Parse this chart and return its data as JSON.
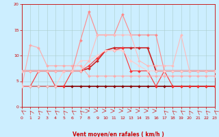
{
  "xlabel": "Vent moyen/en rafales ( km/h )",
  "xlim": [
    0,
    23
  ],
  "ylim": [
    0,
    20
  ],
  "xticks": [
    0,
    1,
    2,
    3,
    4,
    5,
    6,
    7,
    8,
    9,
    10,
    11,
    12,
    13,
    14,
    15,
    16,
    17,
    18,
    19,
    20,
    21,
    22,
    23
  ],
  "yticks": [
    0,
    5,
    10,
    15,
    20
  ],
  "bg_color": "#cceeff",
  "grid_color": "#aacccc",
  "lines": [
    {
      "x": [
        0,
        1,
        2,
        3,
        4,
        5,
        6,
        7,
        8,
        9,
        10,
        11,
        12,
        13,
        14,
        15,
        16,
        17,
        18,
        19,
        20,
        21,
        22,
        23
      ],
      "y": [
        4,
        4,
        4,
        4,
        4,
        4,
        4,
        4,
        4,
        4,
        4,
        4,
        4,
        4,
        4,
        4,
        4,
        4,
        4,
        4,
        4,
        4,
        4,
        4
      ],
      "color": "#880000",
      "lw": 1.2,
      "marker": "D",
      "ms": 2.0
    },
    {
      "x": [
        0,
        1,
        2,
        3,
        4,
        5,
        6,
        7,
        8,
        9,
        10,
        11,
        12,
        13,
        14,
        15,
        16,
        17,
        18,
        19,
        20,
        21,
        22,
        23
      ],
      "y": [
        7,
        7,
        7,
        7,
        7,
        7,
        7,
        7,
        7.5,
        9,
        11,
        11.5,
        11.5,
        11.5,
        11.5,
        11.5,
        7,
        7,
        7,
        7,
        7,
        7,
        7,
        7
      ],
      "color": "#cc2222",
      "lw": 1.2,
      "marker": "D",
      "ms": 2.0
    },
    {
      "x": [
        0,
        1,
        2,
        3,
        4,
        5,
        6,
        7,
        8,
        9,
        10,
        11,
        12,
        13,
        14,
        15,
        16,
        17,
        18,
        19,
        20,
        21,
        22,
        23
      ],
      "y": [
        4,
        4,
        7,
        7,
        4,
        4,
        7,
        7,
        8,
        9.5,
        11,
        11,
        11.5,
        7,
        7,
        7,
        4,
        7,
        4,
        4,
        4,
        4,
        4,
        4
      ],
      "color": "#ff3333",
      "lw": 0.8,
      "marker": "D",
      "ms": 2.0
    },
    {
      "x": [
        0,
        1,
        2,
        3,
        4,
        5,
        6,
        7,
        8,
        9,
        10,
        11,
        12,
        13,
        14,
        15,
        16,
        17,
        18,
        19,
        20,
        21,
        22,
        23
      ],
      "y": [
        4,
        12,
        11.5,
        8,
        8,
        8,
        8,
        8,
        6,
        6,
        6,
        6,
        6,
        6,
        6,
        6,
        6,
        6,
        6,
        6,
        6,
        6,
        6,
        6
      ],
      "color": "#ffaaaa",
      "lw": 0.8,
      "marker": "D",
      "ms": 2.0
    },
    {
      "x": [
        0,
        1,
        2,
        3,
        4,
        5,
        6,
        7,
        8,
        9,
        10,
        11,
        12,
        13,
        14,
        15,
        16,
        17,
        18,
        19,
        20,
        21,
        22,
        23
      ],
      "y": [
        7,
        7,
        7,
        7,
        7,
        7,
        7,
        13,
        18.5,
        14,
        14,
        14,
        18,
        14,
        14,
        14,
        14,
        7,
        7,
        7,
        7,
        7,
        7,
        7
      ],
      "color": "#ff8888",
      "lw": 0.8,
      "marker": "D",
      "ms": 2.0
    },
    {
      "x": [
        0,
        1,
        2,
        3,
        4,
        5,
        6,
        7,
        8,
        9,
        10,
        11,
        12,
        13,
        14,
        15,
        16,
        17,
        18,
        19,
        20,
        21,
        22,
        23
      ],
      "y": [
        4,
        4,
        4,
        4,
        4,
        7,
        7,
        9,
        9,
        10,
        11,
        11,
        11,
        9,
        8,
        7,
        7,
        7,
        7,
        7,
        7,
        7,
        7,
        7
      ],
      "color": "#ffcccc",
      "lw": 0.8,
      "marker": "D",
      "ms": 2.0
    },
    {
      "x": [
        0,
        1,
        2,
        3,
        4,
        5,
        6,
        7,
        8,
        9,
        10,
        11,
        12,
        13,
        14,
        15,
        16,
        17,
        18,
        19,
        20,
        21,
        22,
        23
      ],
      "y": [
        7,
        7,
        7,
        7,
        7,
        7,
        7,
        7,
        9,
        14,
        14,
        14,
        14,
        14,
        9,
        8,
        8,
        8,
        8,
        14,
        7,
        7,
        7,
        7
      ],
      "color": "#ffbbbb",
      "lw": 0.8,
      "marker": "D",
      "ms": 2.0
    }
  ],
  "axis_color": "#cc0000",
  "tick_label_color": "#cc0000",
  "xlabel_color": "#cc0000",
  "arrow_angles": [
    225,
    200,
    210,
    220,
    215,
    205,
    220,
    210,
    90,
    80,
    85,
    90,
    85,
    80,
    90,
    85,
    90,
    210,
    215,
    220,
    200,
    215,
    210,
    220
  ]
}
